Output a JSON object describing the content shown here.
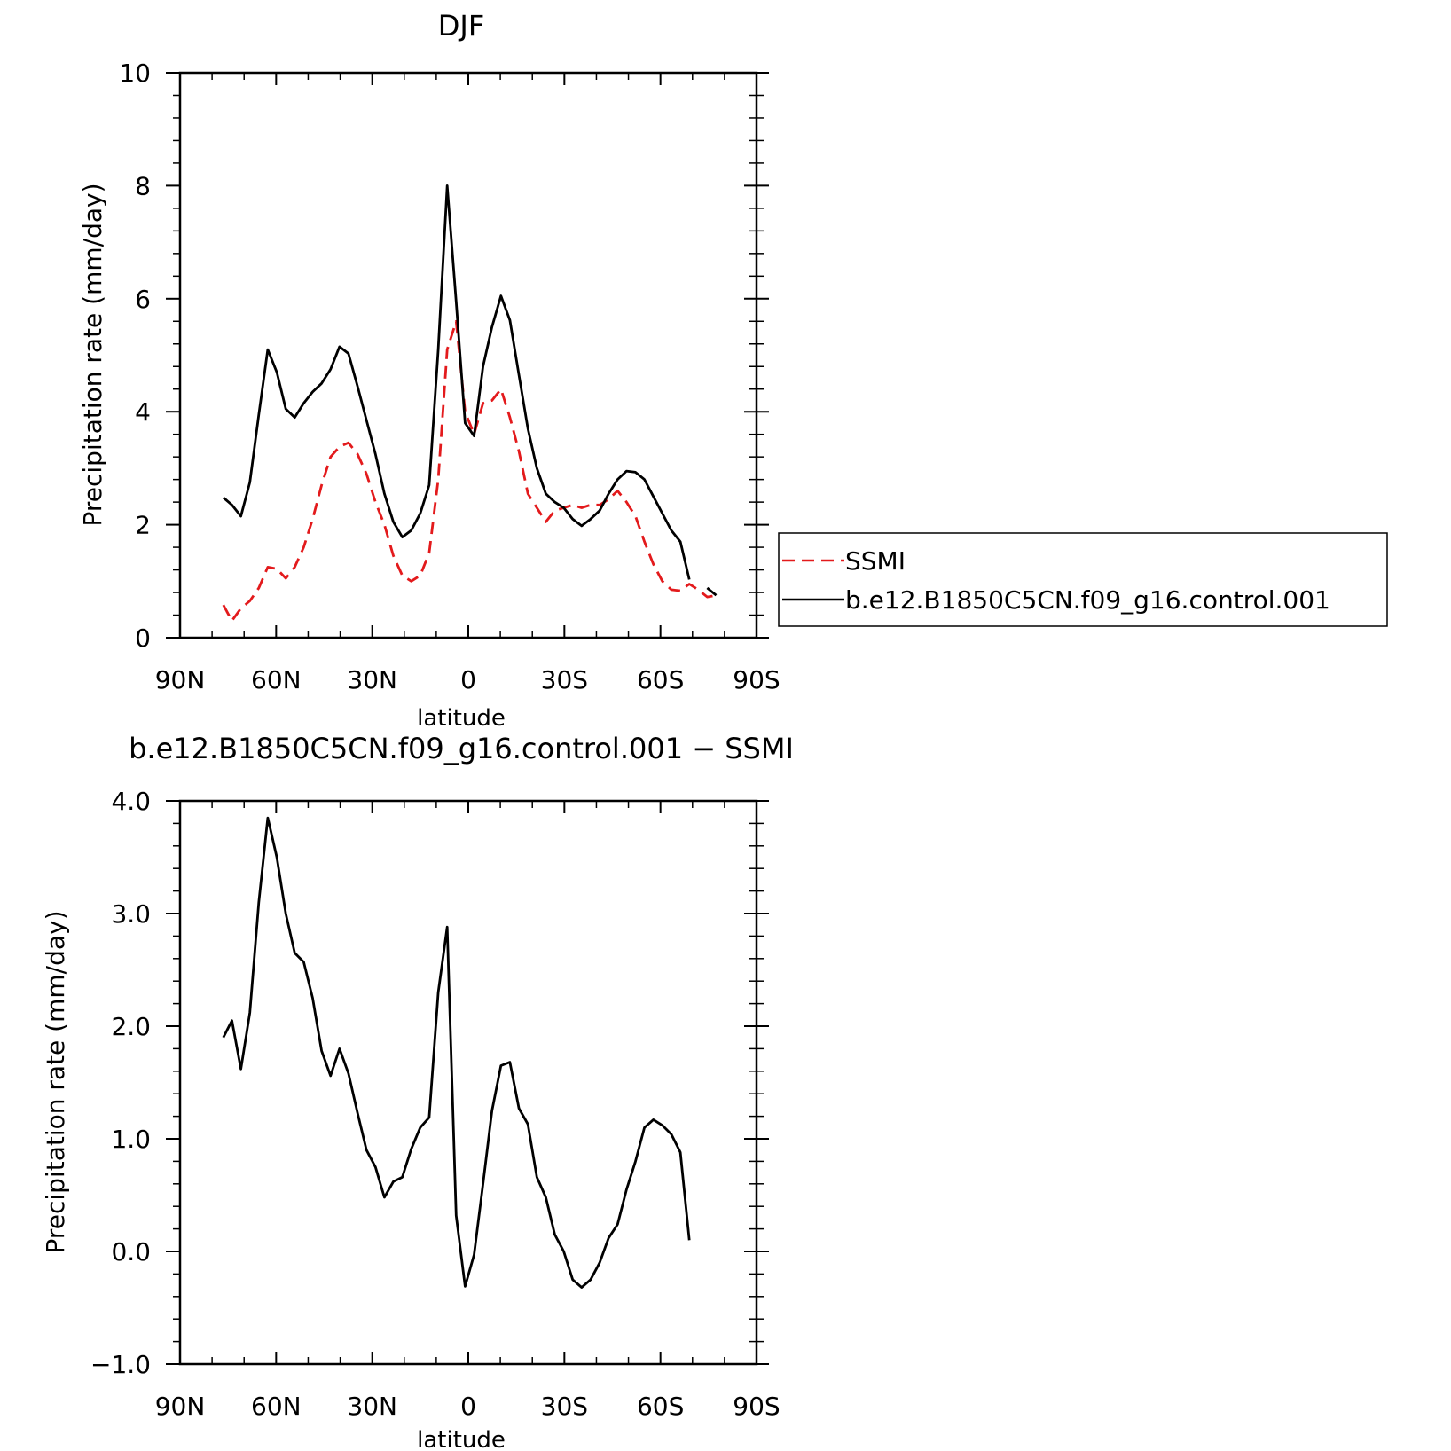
{
  "chart_data": [
    {
      "type": "line",
      "title": "DJF",
      "xlabel": "latitude",
      "ylabel": "Precipitation rate (mm/day)",
      "xlim": [
        90,
        -90
      ],
      "ylim": [
        0,
        10
      ],
      "x_ticks": [
        {
          "value": 90,
          "label": "90N"
        },
        {
          "value": 60,
          "label": "60N"
        },
        {
          "value": 30,
          "label": "30N"
        },
        {
          "value": 0,
          "label": "0"
        },
        {
          "value": -30,
          "label": "30S"
        },
        {
          "value": -60,
          "label": "60S"
        },
        {
          "value": -90,
          "label": "90S"
        }
      ],
      "y_ticks": [
        {
          "value": 0,
          "label": "0"
        },
        {
          "value": 2,
          "label": "2"
        },
        {
          "value": 4,
          "label": "4"
        },
        {
          "value": 6,
          "label": "6"
        },
        {
          "value": 8,
          "label": "8"
        },
        {
          "value": 10,
          "label": "10"
        }
      ],
      "legend_position": "right",
      "series": [
        {
          "name": "SSMI",
          "color": "#e31a1c",
          "dash": "dashed",
          "x": [
            76.5,
            73.8,
            71,
            68.2,
            65.4,
            62.6,
            59.8,
            57,
            54.2,
            51.4,
            48.6,
            45.8,
            43,
            40.2,
            37.4,
            34.6,
            31.8,
            29,
            26.2,
            23.4,
            20.6,
            17.8,
            15,
            12.2,
            9.4,
            6.6,
            3.8,
            1,
            -1.8,
            -4.6,
            -7.4,
            -10.2,
            -13,
            -15.8,
            -18.6,
            -21.4,
            -24.2,
            -27,
            -29.8,
            -32.6,
            -35.4,
            -38.2,
            -41,
            -43.8,
            -46.6,
            -49.4,
            -52.2,
            -55,
            -57.8,
            -60.6,
            -63.4,
            -66.2,
            -69,
            -71.8,
            -74.6,
            -77.4
          ],
          "values": [
            0.58,
            0.3,
            0.52,
            0.65,
            0.88,
            1.25,
            1.22,
            1.05,
            1.25,
            1.6,
            2.1,
            2.7,
            3.2,
            3.38,
            3.45,
            3.25,
            2.9,
            2.4,
            2.0,
            1.45,
            1.1,
            1.0,
            1.1,
            1.5,
            2.8,
            5.1,
            5.6,
            4.0,
            3.6,
            4.15,
            4.2,
            4.4,
            3.9,
            3.3,
            2.55,
            2.3,
            2.05,
            2.25,
            2.3,
            2.35,
            2.3,
            2.35,
            2.35,
            2.45,
            2.6,
            2.4,
            2.15,
            1.7,
            1.3,
            1.0,
            0.85,
            0.83,
            0.95,
            0.85,
            0.72,
            0.75
          ]
        },
        {
          "name": "b.e12.B1850C5CN.f09_g16.control.001",
          "color": "#000000",
          "dash": "solid",
          "x": [
            76.5,
            73.8,
            71,
            68.2,
            65.4,
            62.6,
            59.8,
            57,
            54.2,
            51.4,
            48.6,
            45.8,
            43,
            40.2,
            37.4,
            34.6,
            31.8,
            29,
            26.2,
            23.4,
            20.6,
            17.8,
            15,
            12.2,
            9.4,
            6.6,
            3.8,
            1,
            -1.8,
            -4.6,
            -7.4,
            -10.2,
            -13,
            -15.8,
            -18.6,
            -21.4,
            -24.2,
            -27,
            -29.8,
            -32.6,
            -35.4,
            -38.2,
            -41,
            -43.8,
            -46.6,
            -49.4,
            -52.2,
            -55,
            -57.8,
            -60.6,
            -63.4,
            -66.2,
            -69,
            null,
            -74.6,
            -77.4
          ],
          "values": [
            2.48,
            2.35,
            2.15,
            2.75,
            3.95,
            5.1,
            4.7,
            4.05,
            3.9,
            4.15,
            4.35,
            4.5,
            4.75,
            5.15,
            5.03,
            4.45,
            3.85,
            3.25,
            2.55,
            2.05,
            1.78,
            1.9,
            2.2,
            2.7,
            5.1,
            8.0,
            5.95,
            3.8,
            3.57,
            4.8,
            5.5,
            6.05,
            5.62,
            4.65,
            3.7,
            3.0,
            2.55,
            2.4,
            2.3,
            2.1,
            1.98,
            2.1,
            2.25,
            2.55,
            2.8,
            2.95,
            2.93,
            2.8,
            2.5,
            2.2,
            1.9,
            1.7,
            1.03,
            null,
            0.88,
            0.75
          ]
        }
      ]
    },
    {
      "type": "line",
      "title": "b.e12.B1850C5CN.f09_g16.control.001 − SSMI",
      "xlabel": "latitude",
      "ylabel": "Precipitation rate (mm/day)",
      "xlim": [
        90,
        -90
      ],
      "ylim": [
        -1,
        4
      ],
      "x_ticks": [
        {
          "value": 90,
          "label": "90N"
        },
        {
          "value": 60,
          "label": "60N"
        },
        {
          "value": 30,
          "label": "30N"
        },
        {
          "value": 0,
          "label": "0"
        },
        {
          "value": -30,
          "label": "30S"
        },
        {
          "value": -60,
          "label": "60S"
        },
        {
          "value": -90,
          "label": "90S"
        }
      ],
      "y_ticks": [
        {
          "value": -1,
          "label": "−1.0"
        },
        {
          "value": 0,
          "label": "0.0"
        },
        {
          "value": 1,
          "label": "1.0"
        },
        {
          "value": 2,
          "label": "2.0"
        },
        {
          "value": 3,
          "label": "3.0"
        },
        {
          "value": 4,
          "label": "4.0"
        }
      ],
      "series": [
        {
          "color": "#000000",
          "dash": "solid",
          "x": [
            76.5,
            73.8,
            71,
            68.2,
            65.4,
            62.6,
            59.8,
            57,
            54.2,
            51.4,
            48.6,
            45.8,
            43,
            40.2,
            37.4,
            34.6,
            31.8,
            29,
            26.2,
            23.4,
            20.6,
            17.8,
            15,
            12.2,
            9.4,
            6.6,
            3.8,
            1,
            -1.8,
            -4.6,
            -7.4,
            -10.2,
            -13,
            -15.8,
            -18.6,
            -21.4,
            -24.2,
            -27,
            -29.8,
            -32.6,
            -35.4,
            -38.2,
            -41,
            -43.8,
            -46.6,
            -49.4,
            -52.2,
            -55,
            -57.8,
            -60.6,
            -63.4,
            -66.2,
            -69
          ],
          "values": [
            1.9,
            2.05,
            1.62,
            2.12,
            3.1,
            3.85,
            3.5,
            3.0,
            2.65,
            2.57,
            2.25,
            1.78,
            1.56,
            1.8,
            1.58,
            1.23,
            0.9,
            0.75,
            0.48,
            0.62,
            0.66,
            0.91,
            1.1,
            1.19,
            2.3,
            2.88,
            0.32,
            -0.31,
            -0.03,
            0.6,
            1.25,
            1.65,
            1.68,
            1.27,
            1.13,
            0.66,
            0.48,
            0.15,
            0.0,
            -0.25,
            -0.32,
            -0.25,
            -0.1,
            0.12,
            0.24,
            0.55,
            0.8,
            1.1,
            1.17,
            1.12,
            1.04,
            0.88,
            0.1
          ]
        }
      ]
    }
  ]
}
